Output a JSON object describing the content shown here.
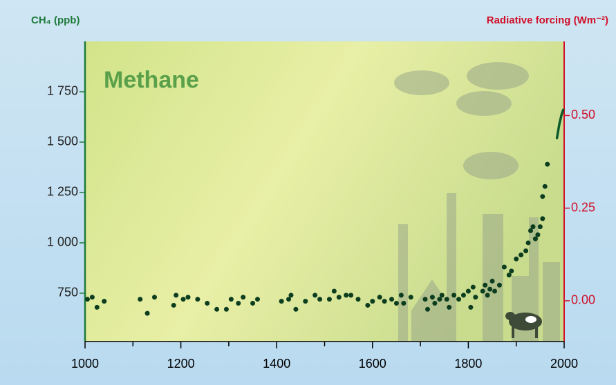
{
  "chart_data": {
    "type": "scatter",
    "title": "Methane",
    "ylabel": "CH₄ (ppb)",
    "y2label": "Radiative forcing (Wm⁻²)",
    "xlim": [
      1000,
      2000
    ],
    "xticks": [
      1000,
      1200,
      1400,
      1600,
      1800,
      2000
    ],
    "xminorticks": [
      1100,
      1300,
      1500,
      1700,
      1900
    ],
    "ylim": [
      510,
      2000
    ],
    "yticks": [
      750,
      {
        "value": 1000,
        "label": "1 000"
      },
      {
        "value": 1250,
        "label": "1 250"
      },
      {
        "value": 1500,
        "label": "1 500"
      },
      {
        "value": 1750,
        "label": "1 750"
      }
    ],
    "y2lim": [
      -0.11,
      0.7
    ],
    "y2ticks": [
      {
        "value": 0,
        "label": "0.00"
      },
      {
        "value": 0.25,
        "label": "0.25"
      },
      {
        "value": 0.5,
        "label": "0.50"
      }
    ],
    "series": [
      {
        "type": "scatter",
        "color": "#0b3d1e",
        "x": [
          1005,
          1015,
          1025,
          1040,
          1115,
          1130,
          1145,
          1185,
          1190,
          1205,
          1215,
          1235,
          1255,
          1275,
          1295,
          1305,
          1320,
          1330,
          1350,
          1360,
          1410,
          1425,
          1430,
          1440,
          1460,
          1480,
          1490,
          1510,
          1520,
          1530,
          1545,
          1555,
          1570,
          1590,
          1600,
          1615,
          1625,
          1640,
          1650,
          1660,
          1665,
          1680,
          1710,
          1715,
          1725,
          1730,
          1740,
          1745,
          1755,
          1760,
          1770,
          1780,
          1790,
          1800,
          1805,
          1810,
          1815,
          1830,
          1835,
          1840,
          1845,
          1850,
          1855,
          1865,
          1875,
          1885,
          1890,
          1900,
          1910,
          1920,
          1925,
          1930,
          1935,
          1940,
          1945,
          1950,
          1955,
          1955,
          1960,
          1965
        ],
        "values": [
          720,
          730,
          680,
          710,
          720,
          650,
          730,
          690,
          740,
          720,
          730,
          720,
          700,
          670,
          670,
          720,
          700,
          730,
          700,
          720,
          710,
          720,
          740,
          670,
          710,
          740,
          720,
          720,
          760,
          730,
          740,
          740,
          720,
          690,
          710,
          730,
          710,
          720,
          700,
          740,
          700,
          730,
          720,
          670,
          730,
          700,
          720,
          740,
          720,
          680,
          740,
          720,
          740,
          760,
          680,
          780,
          730,
          760,
          790,
          740,
          770,
          810,
          760,
          790,
          880,
          840,
          860,
          920,
          940,
          960,
          1000,
          1060,
          1080,
          1020,
          1040,
          1080,
          1120,
          1230,
          1280,
          1390
        ]
      },
      {
        "type": "line",
        "color": "#0b5a2a",
        "x": [
          1985,
          1990,
          1995,
          1998
        ],
        "values": [
          1520,
          1590,
          1640,
          1660
        ]
      }
    ]
  }
}
